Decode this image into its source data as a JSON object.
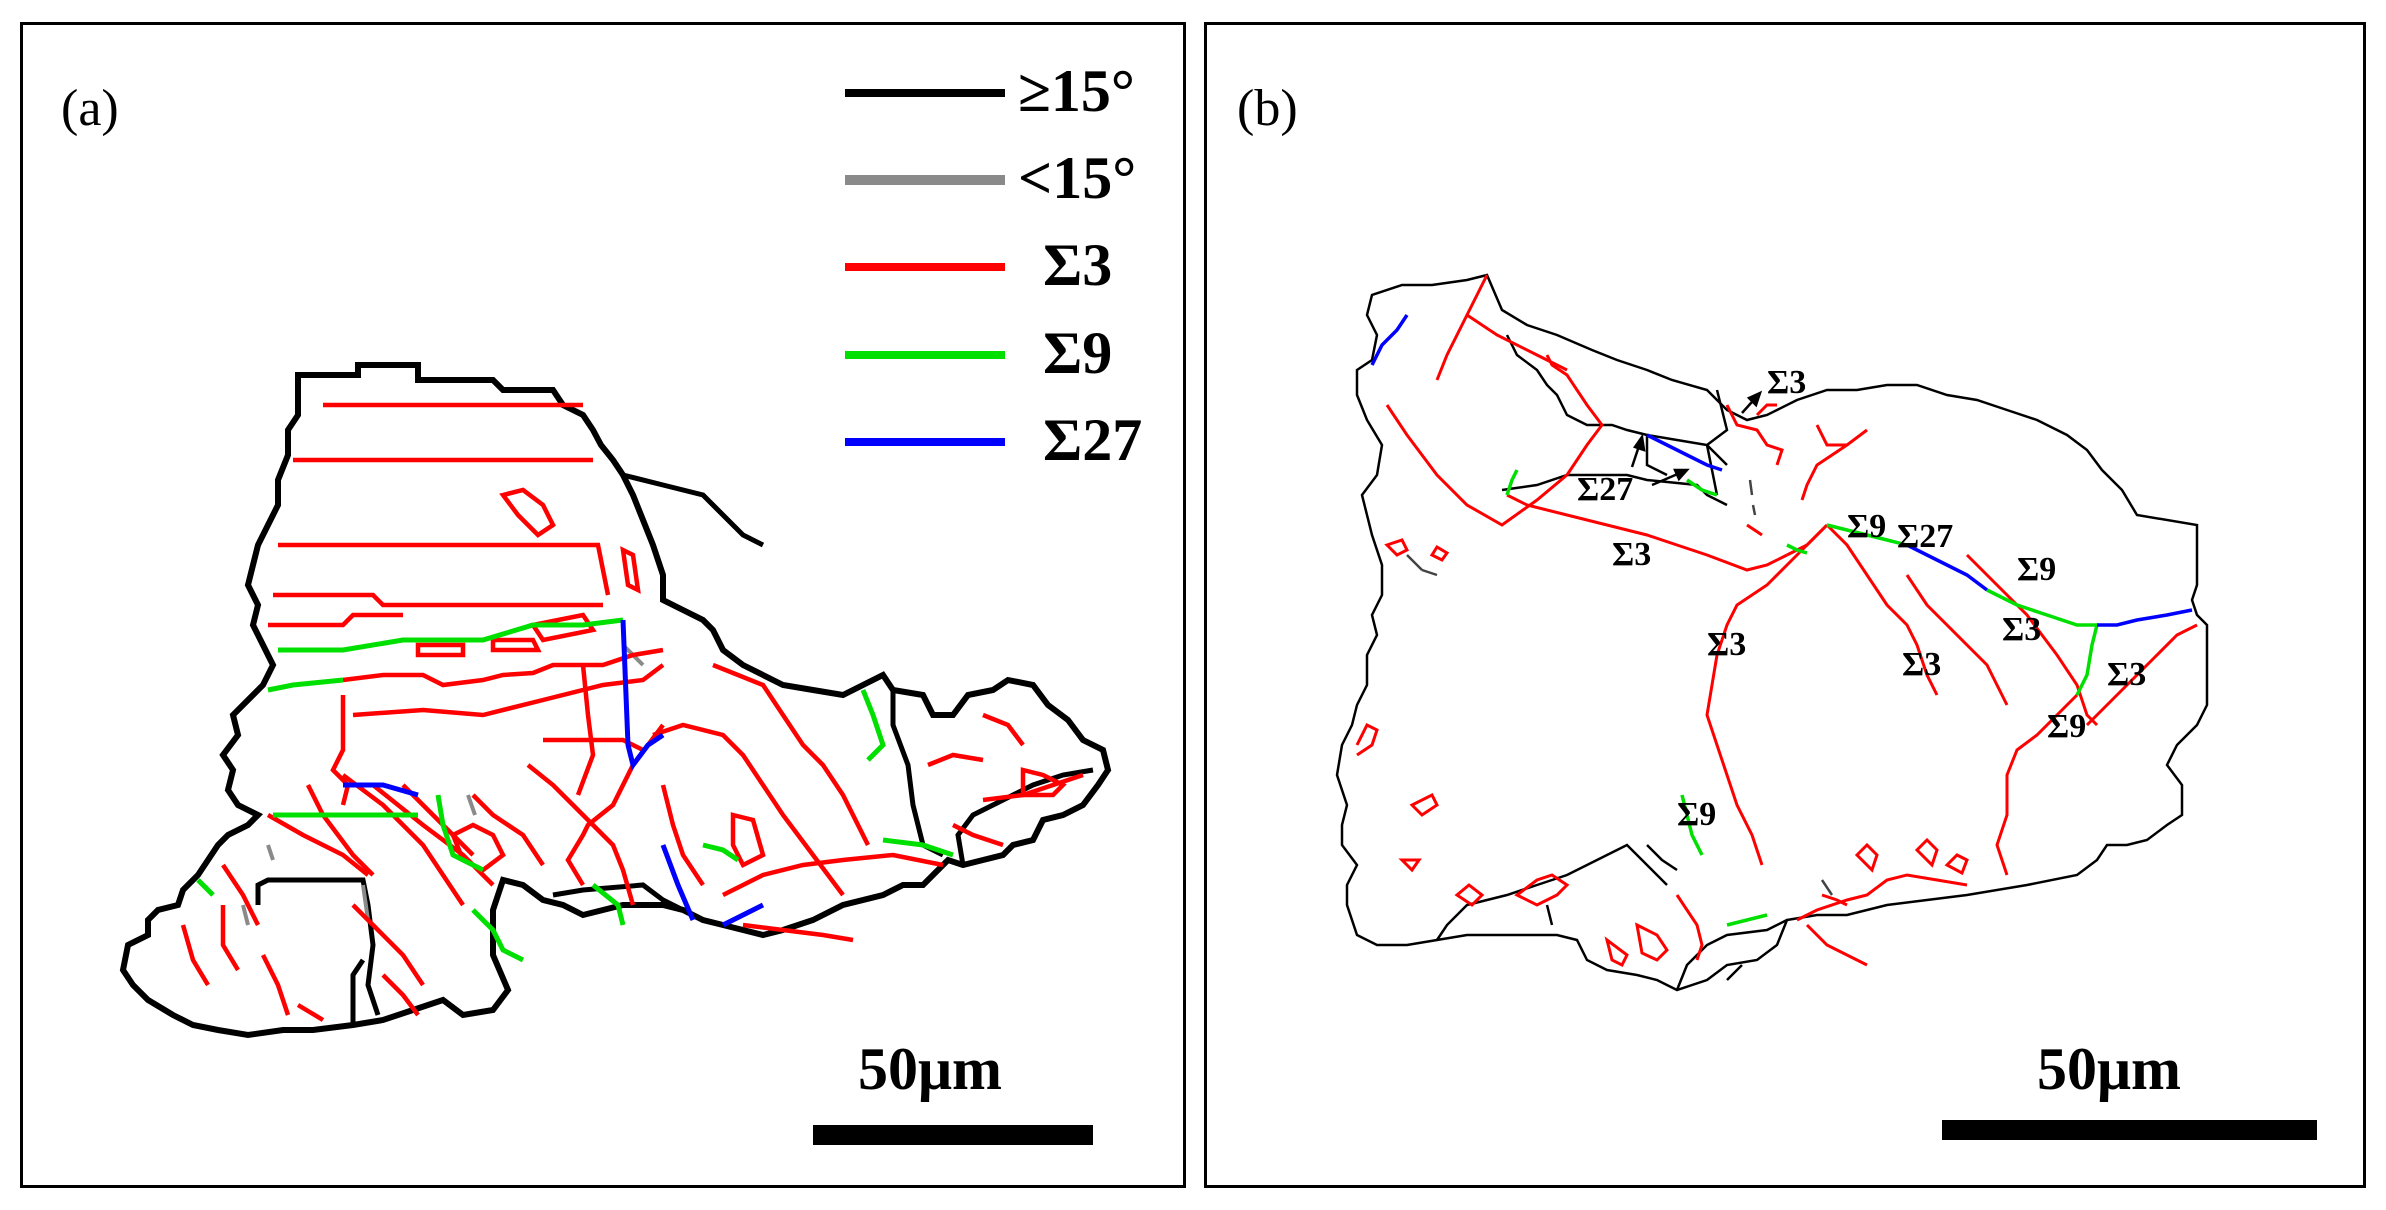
{
  "panels": [
    {
      "label": "(a)",
      "scale_bar": "50μm"
    },
    {
      "label": "(b)",
      "scale_bar": "50μm"
    }
  ],
  "legend": [
    {
      "label": "≥15°",
      "color": "#000000"
    },
    {
      "label": "<15°",
      "color": "#8a8a8a"
    },
    {
      "label": "Σ3",
      "color": "#ff0000"
    },
    {
      "label": "Σ9",
      "color": "#00e000"
    },
    {
      "label": "Σ27",
      "color": "#0000ff"
    }
  ],
  "annotations_b": [
    "Σ3",
    "Σ27",
    "Σ9",
    "Σ27",
    "Σ3",
    "Σ9",
    "Σ3",
    "Σ3",
    "Σ3",
    "Σ3",
    "Σ9",
    "Σ9"
  ]
}
